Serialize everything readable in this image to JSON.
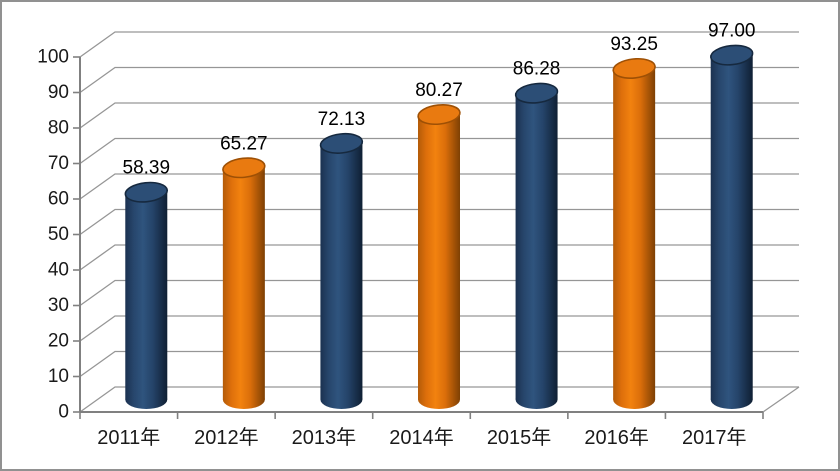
{
  "chart_data": {
    "type": "bar",
    "subtype": "3d-cylinder",
    "title": "",
    "xlabel": "",
    "ylabel": "",
    "categories": [
      "2011年",
      "2012年",
      "2013年",
      "2014年",
      "2015年",
      "2016年",
      "2017年"
    ],
    "values": [
      58.39,
      65.27,
      72.13,
      80.27,
      86.28,
      93.25,
      97.0
    ],
    "data_labels": [
      "58.39",
      "65.27",
      "72.13",
      "80.27",
      "86.28",
      "93.25",
      "97.00"
    ],
    "ylim": [
      0,
      100
    ],
    "ytick_step": 10,
    "ytick_labels": [
      "0",
      "10",
      "20",
      "30",
      "40",
      "50",
      "60",
      "70",
      "80",
      "90",
      "100"
    ],
    "grid": true,
    "legend": "none",
    "bar_color_pattern": [
      "dark_blue",
      "orange",
      "dark_blue",
      "orange",
      "dark_blue",
      "orange",
      "dark_blue"
    ],
    "palette": {
      "dark_blue": "#1F4066",
      "orange": "#E8730C",
      "gridline": "#969696",
      "axis": "#808080",
      "text": "#1A1A1A",
      "background": "#FFFFFF",
      "frame_border": "#919191"
    }
  }
}
